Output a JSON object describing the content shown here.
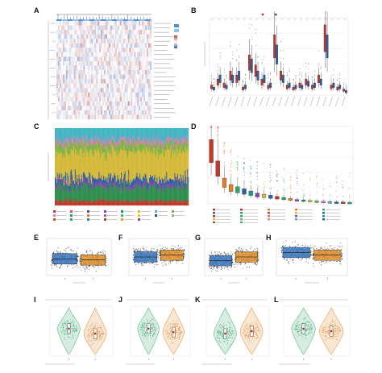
{
  "figure": {
    "panel_letters": [
      "A",
      "B",
      "C",
      "D",
      "E",
      "F",
      "G",
      "H",
      "I",
      "J",
      "K",
      "L"
    ]
  },
  "colors": {
    "heat_high": "#c0392b",
    "heat_low": "#2c5fa8",
    "group_a": "#3a78c2",
    "group_b": "#e0902b",
    "violin_green": "#5fb88a",
    "violin_orange": "#e99a4e",
    "box_risk_high": "#c0392b",
    "box_risk_low": "#2f5fa8"
  },
  "chart_data": [
    {
      "panel": "A",
      "type": "heatmap",
      "rows": 22,
      "cols": 60,
      "grid": false
    },
    {
      "panel": "B",
      "type": "bar",
      "note": "paired boxplots per immune cell type",
      "categories_count": 22,
      "series": [
        {
          "color": "#c0392b",
          "values": [
            0.05,
            0.08,
            0.06,
            0.12,
            0.1,
            0.04,
            0.2,
            0.15,
            0.08,
            0.05,
            0.3,
            0.12,
            0.05,
            0.04,
            0.06,
            0.08,
            0.05,
            0.1,
            0.35,
            0.05,
            0.04,
            0.03
          ]
        },
        {
          "color": "#2f5fa8",
          "values": [
            0.04,
            0.1,
            0.05,
            0.1,
            0.12,
            0.05,
            0.18,
            0.12,
            0.1,
            0.06,
            0.25,
            0.1,
            0.06,
            0.05,
            0.05,
            0.07,
            0.06,
            0.08,
            0.3,
            0.06,
            0.05,
            0.02
          ]
        }
      ]
    },
    {
      "panel": "C",
      "type": "area",
      "note": "stacked relative proportions across samples",
      "layers": [
        {
          "color": "#c0392b",
          "share": 0.06
        },
        {
          "color": "#2f8f4e",
          "share": 0.18
        },
        {
          "color": "#8e44ad",
          "share": 0.04
        },
        {
          "color": "#2c5fa8",
          "share": 0.07
        },
        {
          "color": "#d4b93a",
          "share": 0.35
        },
        {
          "color": "#7fb347",
          "share": 0.1
        },
        {
          "color": "#e07bb5",
          "share": 0.05
        },
        {
          "color": "#45b5c4",
          "share": 0.15
        }
      ]
    },
    {
      "panel": "D",
      "type": "bar",
      "note": "boxplots of cell fractions, descending",
      "values": [
        0.3,
        0.2,
        0.12,
        0.09,
        0.08,
        0.07,
        0.06,
        0.05,
        0.045,
        0.04,
        0.035,
        0.03,
        0.025,
        0.02,
        0.018,
        0.015,
        0.012,
        0.01,
        0.008,
        0.006,
        0.005,
        0.004
      ],
      "colors": [
        "#c0392b",
        "#c0392b",
        "#e67e22",
        "#e67e22",
        "#27ae60",
        "#2c5fa8",
        "#16a085",
        "#8e44ad",
        "#d4b93a",
        "#2c5fa8",
        "#c0392b",
        "#27ae60",
        "#e67e22",
        "#8e44ad",
        "#16a085",
        "#d4b93a",
        "#7fb347",
        "#e07bb5",
        "#45b5c4",
        "#2c5fa8",
        "#c0392b",
        "#27ae60"
      ]
    },
    {
      "panel": "E",
      "type": "scatter",
      "groups": 2,
      "medians": [
        0.45,
        0.42
      ]
    },
    {
      "panel": "F",
      "type": "scatter",
      "groups": 2,
      "medians": [
        0.5,
        0.55
      ]
    },
    {
      "panel": "G",
      "type": "scatter",
      "groups": 2,
      "medians": [
        0.4,
        0.5
      ]
    },
    {
      "panel": "H",
      "type": "scatter",
      "groups": 2,
      "medians": [
        0.62,
        0.55
      ]
    },
    {
      "panel": "I",
      "type": "scatter",
      "note": "violin with box",
      "medians": [
        0.55,
        0.45
      ]
    },
    {
      "panel": "J",
      "type": "scatter",
      "note": "violin with box",
      "medians": [
        0.55,
        0.48
      ]
    },
    {
      "panel": "K",
      "type": "scatter",
      "note": "violin with box",
      "medians": [
        0.45,
        0.5
      ]
    },
    {
      "panel": "L",
      "type": "scatter",
      "note": "violin with box",
      "medians": [
        0.55,
        0.5
      ]
    }
  ]
}
